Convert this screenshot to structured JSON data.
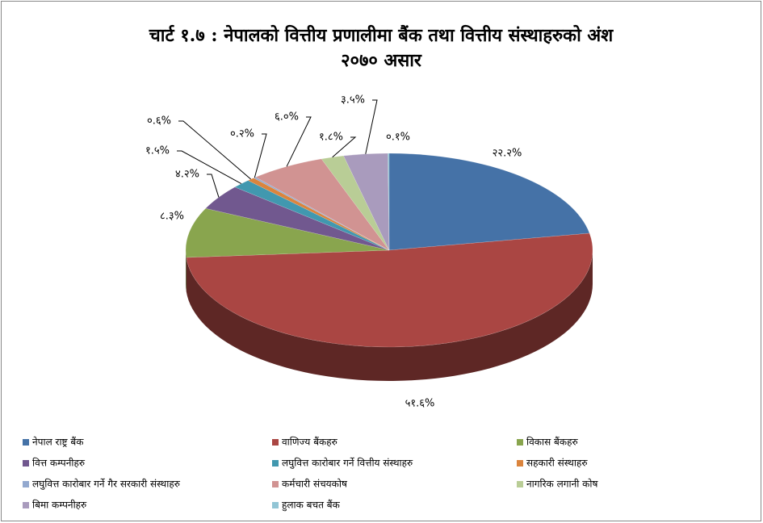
{
  "chart_data": {
    "type": "pie",
    "title": "चार्ट १.७ : नेपालको वित्तीय प्रणालीमा बैंक तथा वित्तीय संस्थाहरुको अंश",
    "subtitle": "२०७० असार",
    "categories": [
      "नेपाल राष्ट्र बैंक",
      "वाणिज्य बैंकहरु",
      "विकास बैंकहरु",
      "वित्त कम्पनीहरु",
      "लघुवित्त कारोबार गर्ने वित्तीय संस्थाहरु",
      "सहकारी संस्थाहरु",
      "लघुवित्त कारोबार गर्ने गैर सरकारी संस्थाहरु",
      "कर्मचारी संचयकोष",
      "नागरिक लगानी कोष",
      "बिमा कम्पनीहरु",
      "हुलाक बचत बैंक"
    ],
    "values": [
      22.2,
      51.6,
      8.3,
      4.2,
      1.5,
      0.6,
      0.2,
      6.0,
      1.8,
      3.5,
      0.1
    ],
    "value_labels": [
      "२२.२%",
      "५१.६%",
      "८.३%",
      "४.२%",
      "१.५%",
      "०.६%",
      "०.२%",
      "६.०%",
      "१.८%",
      "३.५%",
      "०.१%"
    ],
    "colors": [
      "#4572a7",
      "#aa4643",
      "#89a54e",
      "#71588f",
      "#4198af",
      "#db843d",
      "#93a9cf",
      "#d19392",
      "#b9cd96",
      "#a99bbd",
      "#92c5d5"
    ],
    "legend": "bottom"
  }
}
